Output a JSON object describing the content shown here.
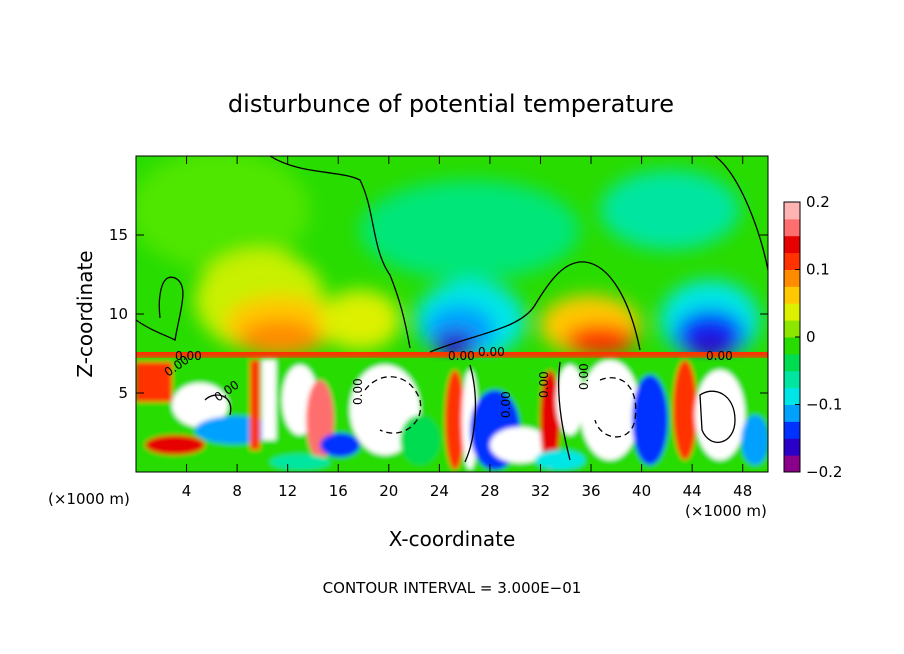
{
  "chart_data": {
    "type": "heatmap",
    "title": "disturbunce of potential temperature",
    "xlabel": "X-coordinate",
    "ylabel": "Z-coordinate",
    "x_unit_left": "(×1000 m)",
    "x_unit_right": "(×1000 m)",
    "xlim": [
      0,
      50
    ],
    "ylim": [
      0,
      20
    ],
    "x_ticks": [
      4,
      8,
      12,
      16,
      20,
      24,
      28,
      32,
      36,
      40,
      44,
      48
    ],
    "y_ticks": [
      5,
      10,
      15
    ],
    "colorbar": {
      "vmin": -0.2,
      "vmax": 0.2,
      "ticks": [
        {
          "value": 0.2,
          "label": "0.2"
        },
        {
          "value": 0.1,
          "label": "0.1"
        },
        {
          "value": 0,
          "label": "0"
        },
        {
          "value": -0.1,
          "label": "−0.1"
        },
        {
          "value": -0.2,
          "label": "−0.2"
        }
      ],
      "colors": [
        "#8b008b",
        "#2a00c8",
        "#0032ff",
        "#00a0ff",
        "#00e6e6",
        "#00e6a0",
        "#00dc50",
        "#28dc00",
        "#8ce600",
        "#dcf000",
        "#ffc800",
        "#ff8c00",
        "#ff3200",
        "#e60000",
        "#ff6e6e",
        "#ffb4b4"
      ]
    },
    "contour_labels": [
      "0.00",
      "0.00",
      "0.00",
      "0.00",
      "0.00",
      "0.00",
      "0.00",
      "0.00",
      "0.00",
      "0.00"
    ],
    "contour_interval_text": "CONTOUR INTERVAL = 3.000E−01",
    "regions": [
      {
        "x": [
          0,
          50
        ],
        "z": [
          7.3,
          20
        ],
        "value": 0.0
      },
      {
        "x": [
          3,
          13
        ],
        "z": [
          8,
          14
        ],
        "value": 0.06
      },
      {
        "x": [
          7,
          12
        ],
        "z": [
          8,
          11
        ],
        "value": 0.1
      },
      {
        "x": [
          23,
          29
        ],
        "z": [
          8,
          10
        ],
        "value": -0.15
      },
      {
        "x": [
          31,
          37
        ],
        "z": [
          8,
          11
        ],
        "value": 0.08
      },
      {
        "x": [
          43,
          48
        ],
        "z": [
          8,
          10
        ],
        "value": -0.15
      },
      {
        "x": [
          0,
          50
        ],
        "z": [
          0,
          7.3
        ],
        "value": "mixed"
      }
    ]
  },
  "colors": {
    "background": "#ffffff",
    "axis": "#000000"
  }
}
